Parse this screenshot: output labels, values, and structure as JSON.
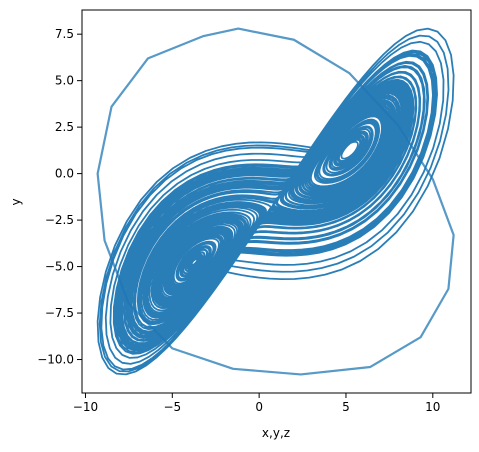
{
  "chart_data": {
    "type": "line",
    "title": "",
    "xlabel": "x,y,z",
    "ylabel": "y",
    "xlim": [
      -10.2,
      12.2
    ],
    "ylim": [
      -11.8,
      8.8
    ],
    "x_ticks": [
      -10,
      -5,
      0,
      5,
      10
    ],
    "y_ticks": [
      7.5,
      5.0,
      2.5,
      0.0,
      -2.5,
      -5.0,
      -7.5,
      -10.0
    ],
    "x_tick_labels": [
      "−10",
      "−5",
      "0",
      "5",
      "10"
    ],
    "y_tick_labels": [
      "7.5",
      "5.0",
      "2.5",
      "0.0",
      "−2.5",
      "−5.0",
      "−7.5",
      "−10.0"
    ],
    "grid": false,
    "legend": "none",
    "series": [
      {
        "color": "#1f77b4",
        "description_points": [
          [
            -9.3,
            0.0
          ],
          [
            -8.5,
            3.6
          ],
          [
            -6.4,
            6.2
          ],
          [
            -3.2,
            7.4
          ],
          [
            -1.2,
            7.8
          ],
          [
            2.0,
            7.2
          ],
          [
            5.2,
            5.4
          ],
          [
            8.0,
            2.6
          ],
          [
            10.0,
            -0.3
          ],
          [
            11.2,
            -3.3
          ],
          [
            10.9,
            -6.2
          ],
          [
            9.3,
            -8.8
          ],
          [
            6.4,
            -10.4
          ],
          [
            2.4,
            -10.8
          ],
          [
            -1.5,
            -10.5
          ],
          [
            -5.0,
            -9.4
          ],
          [
            -7.5,
            -7.0
          ],
          [
            -8.9,
            -3.6
          ],
          [
            -9.3,
            0.0
          ]
        ]
      }
    ]
  }
}
